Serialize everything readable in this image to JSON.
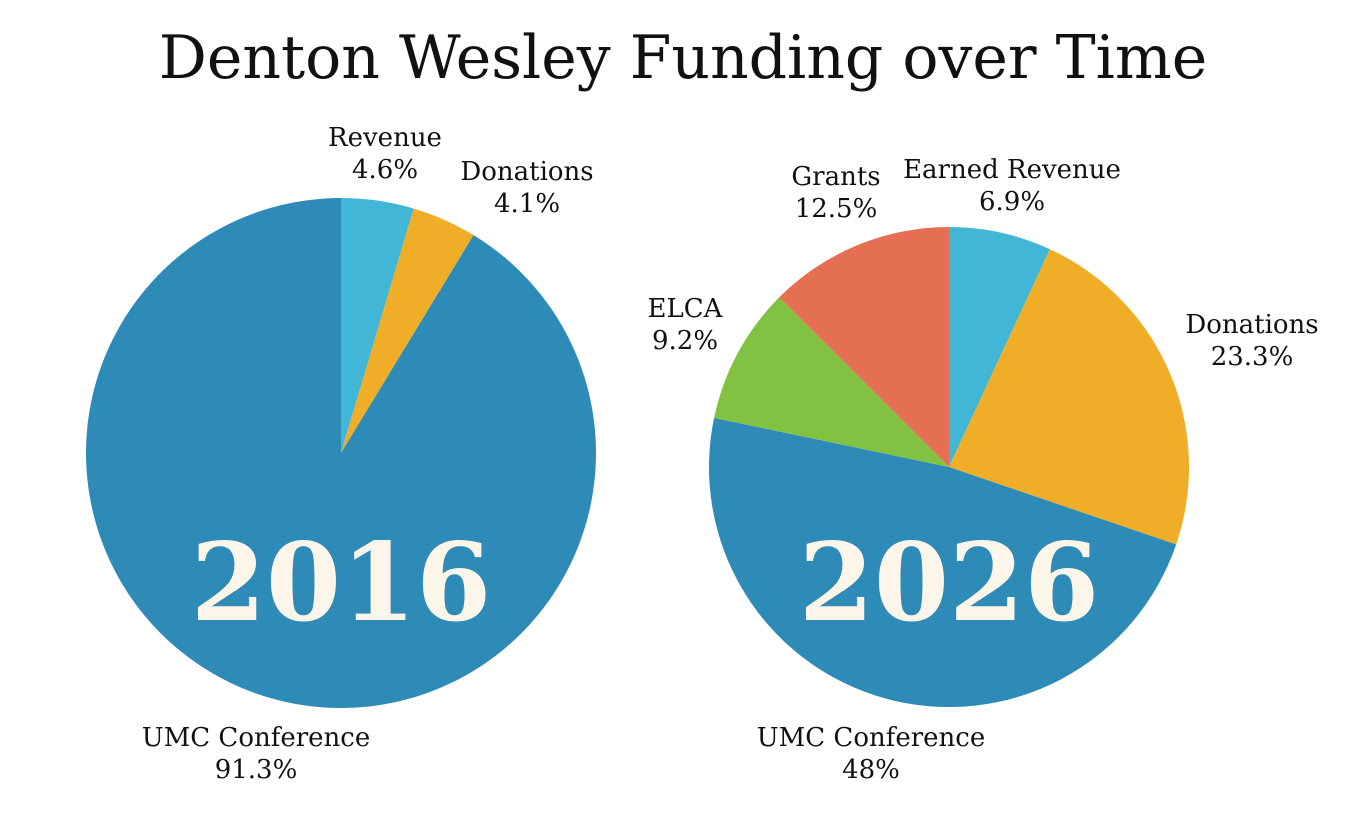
{
  "title": "Denton Wesley Funding over Time",
  "colors": {
    "umc": "#2e8bb8",
    "revenue": "#41b6d6",
    "donations": "#f0ad28",
    "grants": "#e56f52",
    "elca": "#82c243",
    "year_text": "#fbf5ea"
  },
  "chart_data": [
    {
      "type": "pie",
      "year": "2016",
      "slices": [
        {
          "name": "Revenue",
          "percent_label": "4.6%",
          "value": 4.6,
          "color_key": "revenue"
        },
        {
          "name": "Donations",
          "percent_label": "4.1%",
          "value": 4.1,
          "color_key": "donations"
        },
        {
          "name": "UMC Conference",
          "percent_label": "91.3%",
          "value": 91.3,
          "color_key": "umc"
        }
      ]
    },
    {
      "type": "pie",
      "year": "2026",
      "slices": [
        {
          "name": "Earned Revenue",
          "percent_label": "6.9%",
          "value": 6.9,
          "color_key": "revenue"
        },
        {
          "name": "Donations",
          "percent_label": "23.3%",
          "value": 23.3,
          "color_key": "donations"
        },
        {
          "name": "UMC Conference",
          "percent_label": "48%",
          "value": 48,
          "color_key": "umc"
        },
        {
          "name": "ELCA",
          "percent_label": "9.2%",
          "value": 9.2,
          "color_key": "elca"
        },
        {
          "name": "Grants",
          "percent_label": "12.5%",
          "value": 12.5,
          "color_key": "grants"
        }
      ]
    }
  ]
}
